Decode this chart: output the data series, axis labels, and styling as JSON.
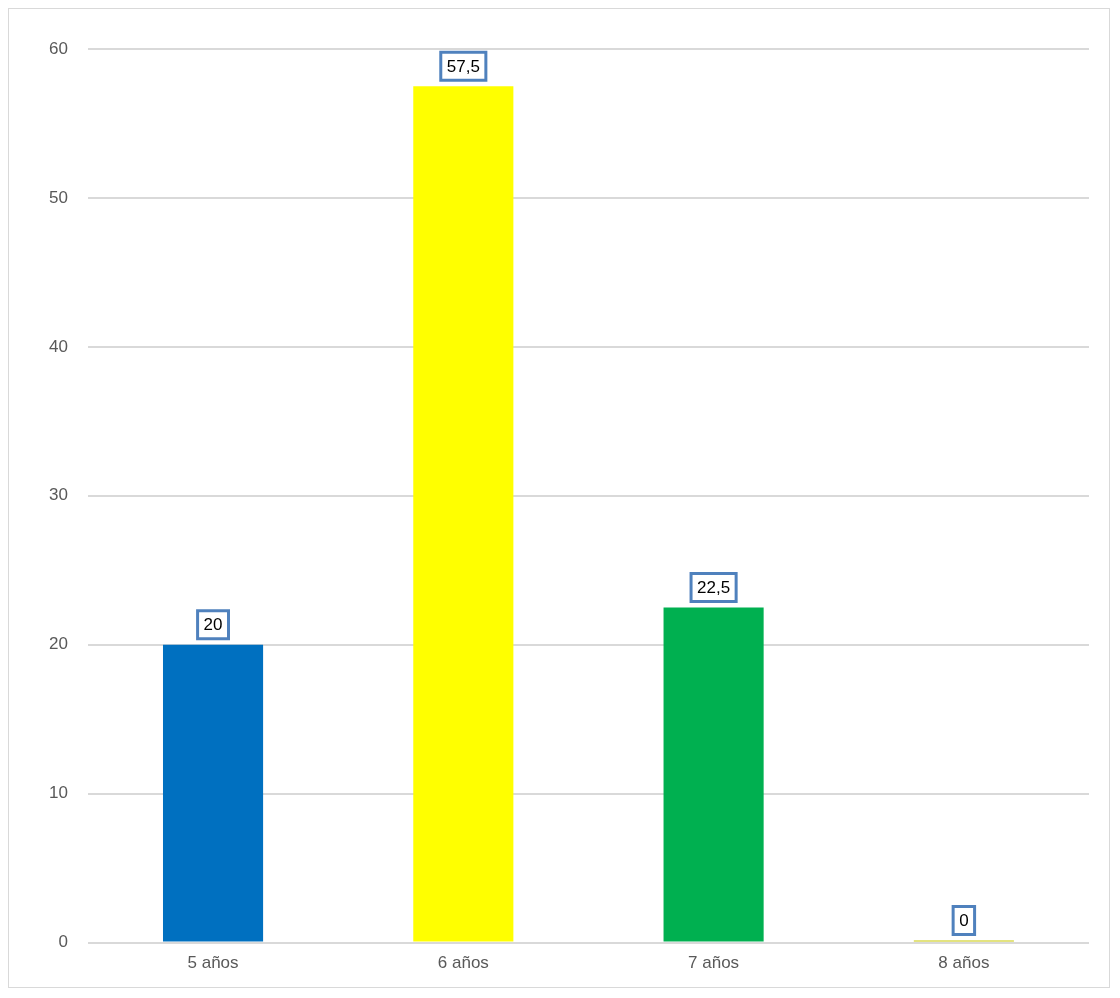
{
  "chart_data": {
    "type": "bar",
    "categories": [
      "5 años",
      "6 años",
      "7 años",
      "8 años"
    ],
    "values": [
      20,
      57.5,
      22.5,
      0
    ],
    "colors": [
      "#0070c0",
      "#ffff00",
      "#00b050",
      "#c8c800"
    ],
    "value_labels": [
      "20",
      "57,5",
      "22,5",
      "0"
    ],
    "ylim": [
      0,
      60
    ],
    "yticks": [
      0,
      10,
      20,
      30,
      40,
      50,
      60
    ],
    "grid": "y",
    "legend": false
  }
}
